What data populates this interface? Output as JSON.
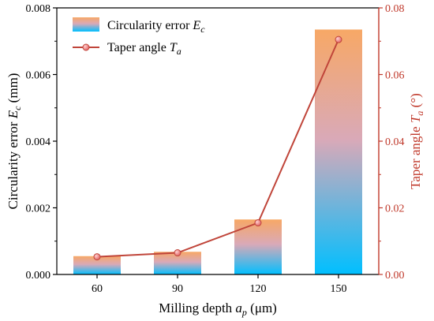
{
  "chart_data": {
    "type": "bar",
    "categories": [
      "60",
      "90",
      "120",
      "150"
    ],
    "series": [
      {
        "name": "Circularity error",
        "name_var": "E",
        "name_sub": "c",
        "axis": "left",
        "type": "bar",
        "values": [
          0.00055,
          0.00068,
          0.00165,
          0.00735
        ]
      },
      {
        "name": "Taper angle",
        "name_var": "T",
        "name_sub": "a",
        "axis": "right",
        "type": "line",
        "values": [
          0.0053,
          0.0065,
          0.0155,
          0.0705
        ]
      }
    ],
    "xlabel": {
      "text": "Milling depth",
      "var": "a",
      "sub": "p",
      "unit": "(μm)"
    },
    "ylabel_left": {
      "text": "Circularity error",
      "var": "E",
      "sub": "c",
      "unit": "(mm)"
    },
    "ylabel_right": {
      "text": "Taper angle",
      "var": "T",
      "sub": "a",
      "unit": "(°)"
    },
    "ylim_left": [
      0,
      0.008
    ],
    "ylim_right": [
      0,
      0.08
    ],
    "yticks_left": [
      "0.000",
      "0.002",
      "0.004",
      "0.006",
      "0.008"
    ],
    "yticks_right": [
      "0.00",
      "0.02",
      "0.04",
      "0.06",
      "0.08"
    ],
    "legend_position": "top-left",
    "grid": false,
    "colors": {
      "bar_top": "#f7a866",
      "bar_bottom": "#00bfff",
      "line": "#c0453a",
      "marker": "#e06060",
      "right_axis": "#c0392b"
    }
  }
}
